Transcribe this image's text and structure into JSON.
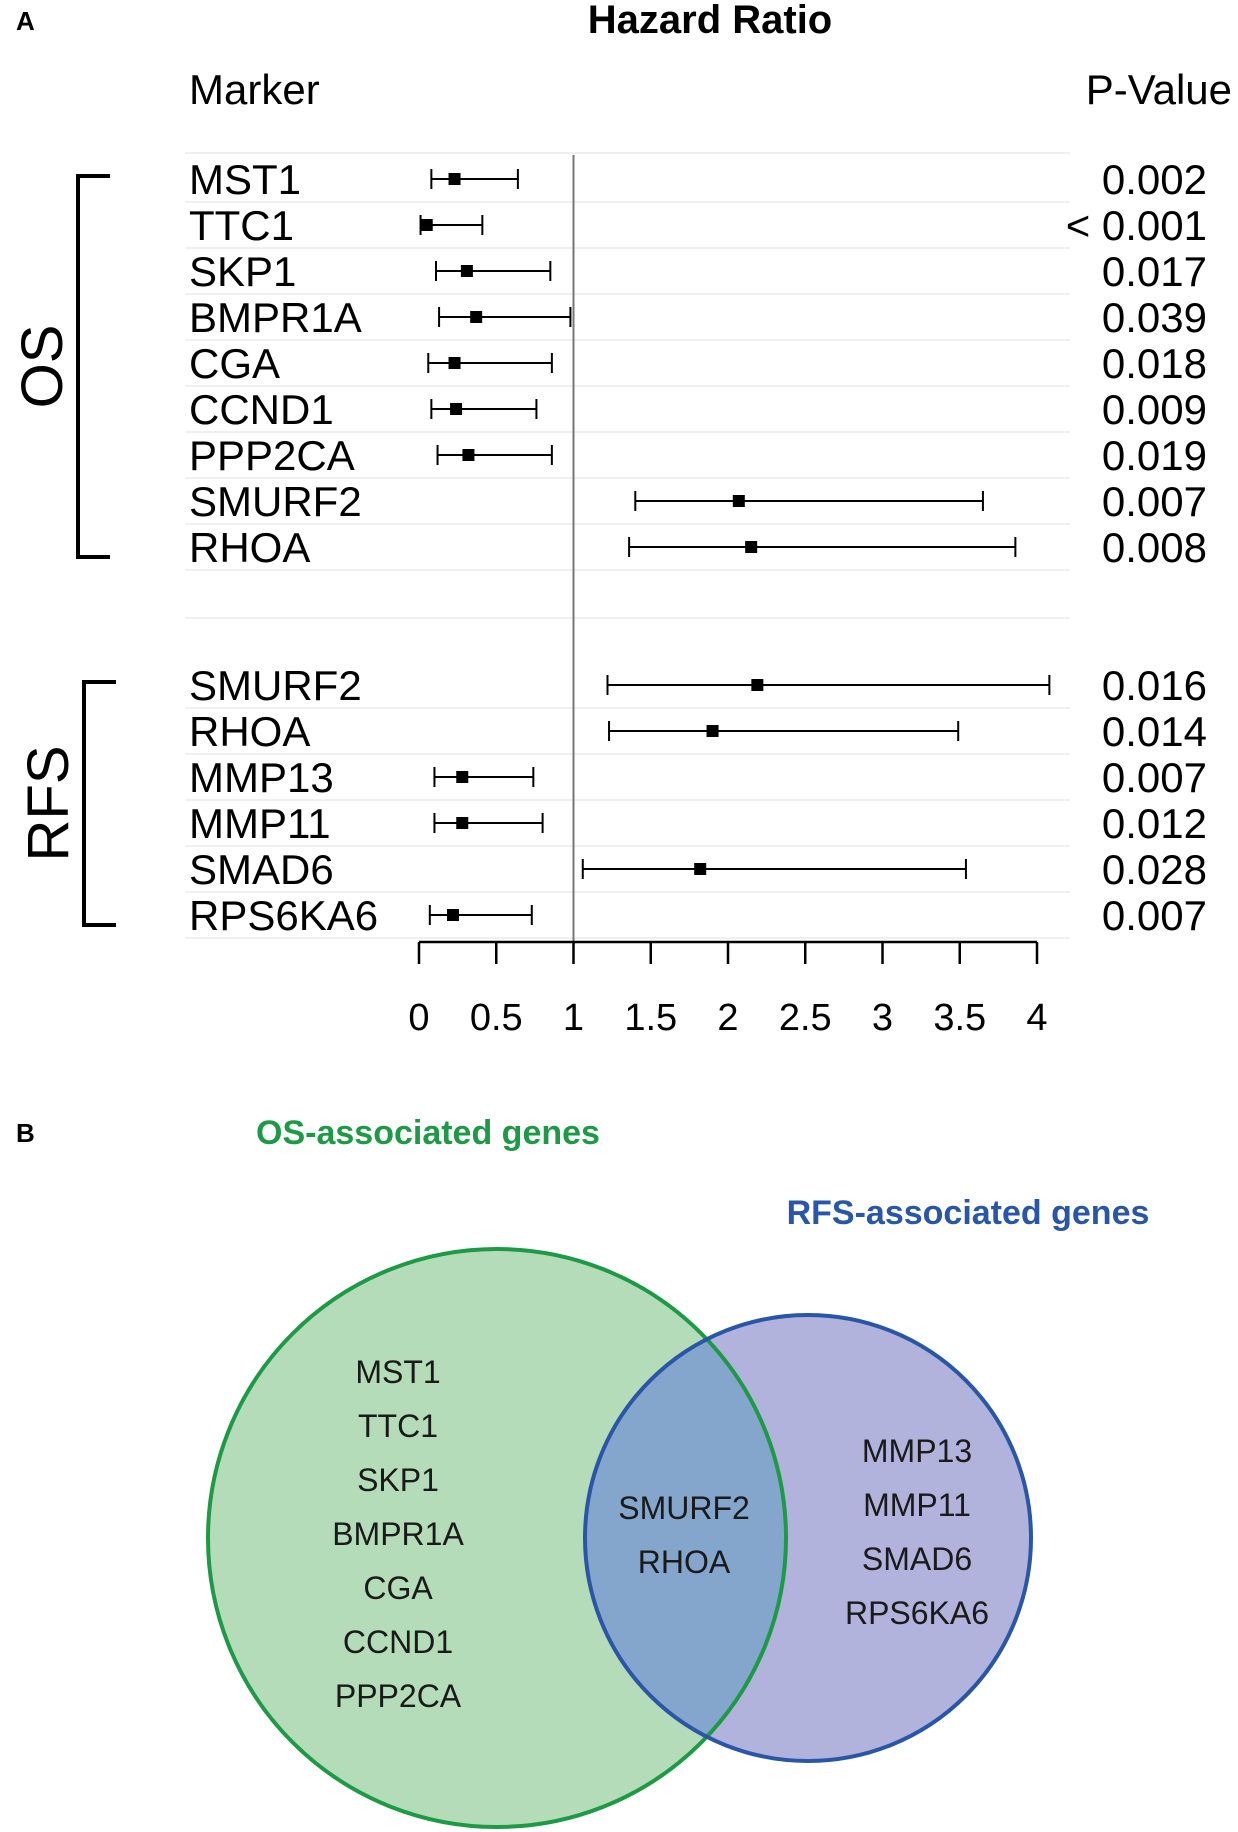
{
  "chart_data": [
    {
      "type": "forest",
      "panel_label": "A",
      "title": "Hazard Ratio",
      "column_headers": {
        "marker": "Marker",
        "pvalue": "P-Value"
      },
      "xlim": [
        0,
        4
      ],
      "xticks": [
        "0",
        "0.5",
        "1",
        "1.5",
        "2",
        "2.5",
        "3",
        "3.5",
        "4"
      ],
      "reference_line": 1,
      "groups": [
        {
          "name": "OS",
          "rows": [
            {
              "marker": "MST1",
              "hr": 0.23,
              "lo": 0.08,
              "hi": 0.64,
              "p": "0.002"
            },
            {
              "marker": "TTC1",
              "hr": 0.05,
              "lo": 0.01,
              "hi": 0.41,
              "p": "< 0.001"
            },
            {
              "marker": "SKP1",
              "hr": 0.31,
              "lo": 0.11,
              "hi": 0.85,
              "p": "0.017"
            },
            {
              "marker": "BMPR1A",
              "hr": 0.37,
              "lo": 0.13,
              "hi": 0.98,
              "p": "0.039"
            },
            {
              "marker": "CGA",
              "hr": 0.23,
              "lo": 0.06,
              "hi": 0.86,
              "p": "0.018"
            },
            {
              "marker": "CCND1",
              "hr": 0.24,
              "lo": 0.08,
              "hi": 0.76,
              "p": "0.009"
            },
            {
              "marker": "PPP2CA",
              "hr": 0.32,
              "lo": 0.12,
              "hi": 0.86,
              "p": "0.019"
            },
            {
              "marker": "SMURF2",
              "hr": 2.07,
              "lo": 1.4,
              "hi": 3.65,
              "p": "0.007"
            },
            {
              "marker": "RHOA",
              "hr": 2.15,
              "lo": 1.36,
              "hi": 3.86,
              "p": "0.008"
            }
          ]
        },
        {
          "name": "RFS",
          "rows": [
            {
              "marker": "SMURF2",
              "hr": 2.19,
              "lo": 1.22,
              "hi": 4.08,
              "p": "0.016"
            },
            {
              "marker": "RHOA",
              "hr": 1.9,
              "lo": 1.23,
              "hi": 3.49,
              "p": "0.014"
            },
            {
              "marker": "MMP13",
              "hr": 0.28,
              "lo": 0.1,
              "hi": 0.74,
              "p": "0.007"
            },
            {
              "marker": "MMP11",
              "hr": 0.28,
              "lo": 0.1,
              "hi": 0.8,
              "p": "0.012"
            },
            {
              "marker": "SMAD6",
              "hr": 1.82,
              "lo": 1.06,
              "hi": 3.54,
              "p": "0.028"
            },
            {
              "marker": "RPS6KA6",
              "hr": 0.22,
              "lo": 0.07,
              "hi": 0.73,
              "p": "0.007"
            }
          ]
        }
      ]
    },
    {
      "type": "venn",
      "panel_label": "B",
      "sets": [
        {
          "name": "OS-associated genes",
          "color": "#1e9a46",
          "fill": "#b4dcb8",
          "only": [
            "MST1",
            "TTC1",
            "SKP1",
            "BMPR1A",
            "CGA",
            "CCND1",
            "PPP2CA"
          ]
        },
        {
          "name": "RFS-associated genes",
          "color": "#2a56a8",
          "fill": "#b1b3dc",
          "only": [
            "MMP13",
            "MMP11",
            "SMAD6",
            "RPS6KA6"
          ]
        }
      ],
      "intersection": {
        "fill": "#84a6cc",
        "genes": [
          "SMURF2",
          "RHOA"
        ]
      }
    }
  ]
}
